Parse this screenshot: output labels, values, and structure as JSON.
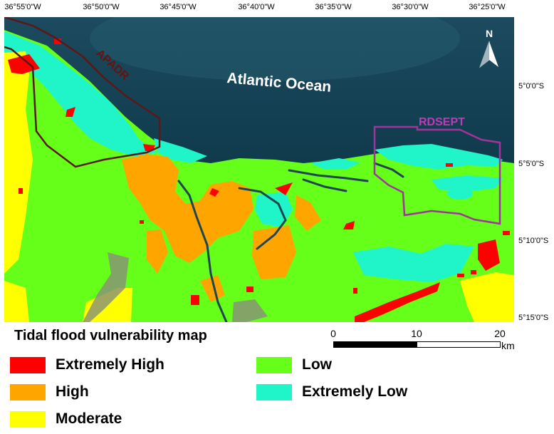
{
  "top_coords": [
    "36°55'0\"W",
    "36°50'0\"W",
    "36°45'0\"W",
    "36°40'0\"W",
    "36°35'0\"W",
    "36°30'0\"W",
    "36°25'0\"W"
  ],
  "right_coords": [
    "5°0'0\"S",
    "5°5'0\"S",
    "5°10'0\"S",
    "5°15'0\"S"
  ],
  "map_labels": {
    "ocean": "Atlantic Ocean",
    "apadr": "APADR",
    "rdsept": "RDSEPT",
    "north": "N"
  },
  "legend": {
    "title": "Tidal flood vulnerability map",
    "items": [
      {
        "label": "Extremely High",
        "color": "#ff0000"
      },
      {
        "label": "High",
        "color": "#ffa500"
      },
      {
        "label": "Moderate",
        "color": "#ffff00"
      },
      {
        "label": "Low",
        "color": "#66ff1a"
      },
      {
        "label": "Extremely Low",
        "color": "#1ff5c8"
      }
    ]
  },
  "scale": {
    "ticks": [
      "0",
      "10",
      "20"
    ],
    "unit": "km"
  },
  "colors": {
    "ocean": "#0e3344",
    "apadr_boundary": "#5a1818",
    "rdsept_boundary": "#a0349a"
  }
}
